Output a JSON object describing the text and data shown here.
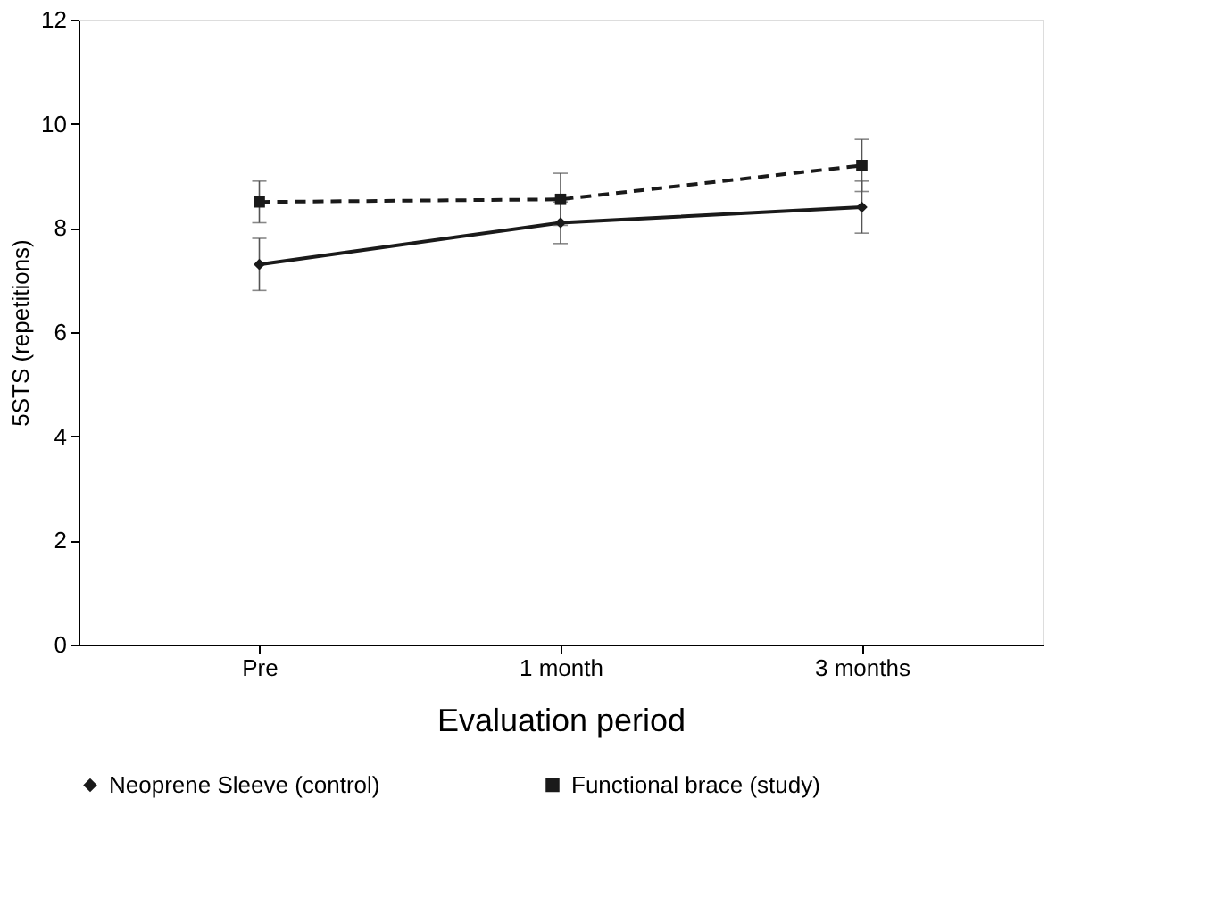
{
  "chart_data": {
    "type": "line",
    "xlabel": "Evaluation period",
    "ylabel": "5STS (repetitions)",
    "categories": [
      "Pre",
      "1 month",
      "3 months"
    ],
    "ylim": [
      0,
      12
    ],
    "yticks": [
      0,
      2,
      4,
      6,
      8,
      10,
      12
    ],
    "grid": false,
    "legend": "bottom",
    "series": [
      {
        "name": "Neoprene Sleeve (control)",
        "color": "#1a1a1a",
        "values": [
          7.3,
          8.1,
          8.4
        ],
        "errors": [
          0.5,
          0.4,
          0.5
        ],
        "marker": "diamond",
        "line_style": "solid"
      },
      {
        "name": "Functional brace (study)",
        "color": "#1a1a1a",
        "values": [
          8.5,
          8.55,
          9.2
        ],
        "errors": [
          0.4,
          0.5,
          0.5
        ],
        "marker": "square",
        "line_style": "dashed"
      }
    ]
  }
}
